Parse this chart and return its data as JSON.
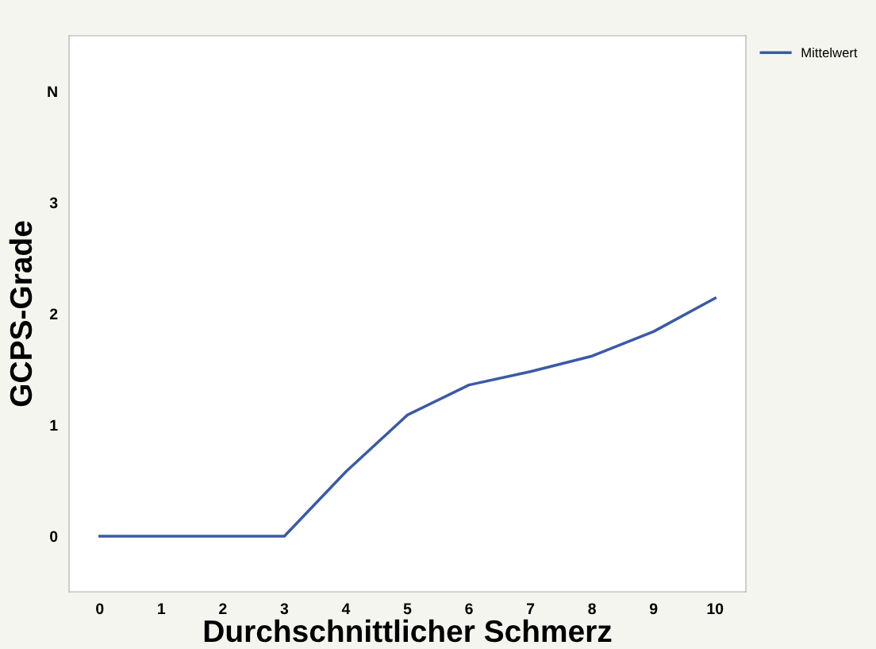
{
  "chart_data": {
    "type": "line",
    "xlabel": "Durchschnittlicher Schmerz",
    "ylabel": "GCPS-Grade",
    "x": [
      0,
      1,
      2,
      3,
      4,
      5,
      6,
      7,
      8,
      9,
      10
    ],
    "series": [
      {
        "name": "Mittelwert",
        "color": "#3a5aa8",
        "values": [
          0,
          0,
          0,
          0,
          0.58,
          1.09,
          1.36,
          1.48,
          1.62,
          1.84,
          2.14
        ]
      }
    ],
    "xlim": [
      -0.5,
      10.5
    ],
    "ylim": [
      -0.5,
      4.5
    ],
    "xticks": [
      0,
      1,
      2,
      3,
      4,
      5,
      6,
      7,
      8,
      9,
      10
    ],
    "yticks": [
      0,
      1,
      2,
      3,
      {
        "value": 4,
        "label": "N"
      }
    ],
    "grid": false,
    "legend": "top right",
    "marker": "none",
    "line_style": "solid"
  }
}
